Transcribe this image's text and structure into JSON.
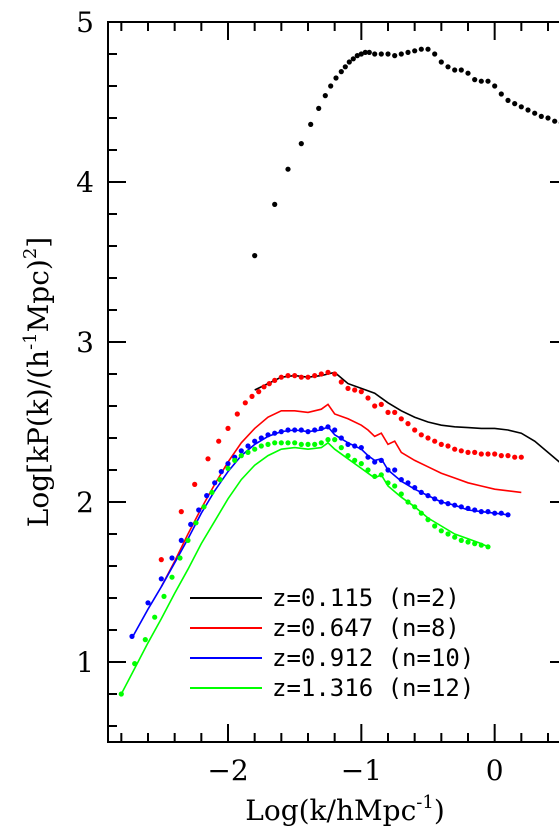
{
  "chart_data": {
    "type": "line",
    "xlabel": "Log(k/hMpc",
    "xlabel_sup": "-1",
    "xlabel_end": ")",
    "ylabel_parts": [
      "Log[kP(k)/(h",
      "-1",
      "Mpc)",
      "2",
      "]"
    ],
    "xlim": [
      -2.9,
      0.55
    ],
    "ylim": [
      0.5,
      5.0
    ],
    "x_ticks": [
      -2,
      -1,
      0
    ],
    "x_tick_labels": [
      "−2",
      "−1",
      "0"
    ],
    "y_ticks": [
      1,
      2,
      3,
      4,
      5
    ],
    "y_tick_labels": [
      "1",
      "2",
      "3",
      "4",
      "5"
    ],
    "legend_position": "bottom-right",
    "series": [
      {
        "name": "z=0.115 (n=2)",
        "color": "#000000",
        "line": {
          "x": [
            -1.8,
            -1.7,
            -1.6,
            -1.5,
            -1.4,
            -1.3,
            -1.2,
            -1.1,
            -1.0,
            -0.9,
            -0.8,
            -0.7,
            -0.6,
            -0.5,
            -0.4,
            -0.3,
            -0.2,
            -0.1,
            0.0,
            0.1,
            0.2,
            0.3,
            0.4,
            0.5,
            0.55
          ],
          "y": [
            2.7,
            2.74,
            2.78,
            2.79,
            2.78,
            2.79,
            2.81,
            2.74,
            2.71,
            2.68,
            2.62,
            2.57,
            2.53,
            2.5,
            2.48,
            2.47,
            2.465,
            2.46,
            2.46,
            2.45,
            2.43,
            2.38,
            2.31,
            2.24,
            2.2
          ]
        },
        "points": {
          "x": [
            -1.8,
            -1.65,
            -1.55,
            -1.45,
            -1.38,
            -1.32,
            -1.27,
            -1.23,
            -1.19,
            -1.15,
            -1.12,
            -1.09,
            -1.06,
            -1.03,
            -1.0,
            -0.97,
            -0.94,
            -0.9,
            -0.85,
            -0.8,
            -0.75,
            -0.7,
            -0.65,
            -0.6,
            -0.55,
            -0.5,
            -0.45,
            -0.4,
            -0.35,
            -0.3,
            -0.25,
            -0.2,
            -0.15,
            -0.1,
            -0.05,
            0.0,
            0.05,
            0.1,
            0.15,
            0.2,
            0.25,
            0.3,
            0.35,
            0.4,
            0.45,
            0.5,
            0.55
          ],
          "y": [
            3.54,
            3.86,
            4.08,
            4.24,
            4.36,
            4.46,
            4.54,
            4.6,
            4.65,
            4.69,
            4.72,
            4.75,
            4.77,
            4.79,
            4.8,
            4.81,
            4.81,
            4.8,
            4.8,
            4.8,
            4.79,
            4.8,
            4.81,
            4.82,
            4.83,
            4.83,
            4.8,
            4.75,
            4.72,
            4.7,
            4.7,
            4.68,
            4.64,
            4.63,
            4.63,
            4.6,
            4.55,
            4.51,
            4.49,
            4.47,
            4.45,
            4.43,
            4.41,
            4.4,
            4.38,
            4.37,
            4.36
          ]
        }
      },
      {
        "name": "z=0.647 (n=8)",
        "color": "#ff0000",
        "line": {
          "x": [
            -2.5,
            -2.4,
            -2.3,
            -2.2,
            -2.1,
            -2.0,
            -1.9,
            -1.8,
            -1.7,
            -1.6,
            -1.5,
            -1.4,
            -1.3,
            -1.25,
            -1.2,
            -1.1,
            -1.0,
            -0.95,
            -0.9,
            -0.85,
            -0.8,
            -0.75,
            -0.7,
            -0.6,
            -0.5,
            -0.4,
            -0.3,
            -0.2,
            -0.1,
            0.0,
            0.1,
            0.2
          ],
          "y": [
            1.47,
            1.63,
            1.8,
            1.96,
            2.11,
            2.25,
            2.37,
            2.46,
            2.53,
            2.57,
            2.57,
            2.56,
            2.58,
            2.61,
            2.55,
            2.52,
            2.48,
            2.45,
            2.41,
            2.43,
            2.36,
            2.38,
            2.31,
            2.26,
            2.22,
            2.18,
            2.15,
            2.12,
            2.1,
            2.08,
            2.07,
            2.06
          ]
        },
        "points": {
          "x": [
            -2.5,
            -2.35,
            -2.25,
            -2.15,
            -2.07,
            -2.0,
            -1.93,
            -1.87,
            -1.82,
            -1.77,
            -1.73,
            -1.69,
            -1.65,
            -1.6,
            -1.55,
            -1.5,
            -1.45,
            -1.4,
            -1.35,
            -1.3,
            -1.25,
            -1.2,
            -1.15,
            -1.1,
            -1.05,
            -1.0,
            -0.95,
            -0.9,
            -0.85,
            -0.8,
            -0.75,
            -0.7,
            -0.65,
            -0.6,
            -0.55,
            -0.5,
            -0.45,
            -0.4,
            -0.35,
            -0.3,
            -0.25,
            -0.2,
            -0.15,
            -0.1,
            -0.05,
            0.0,
            0.05,
            0.1,
            0.15,
            0.2
          ],
          "y": [
            1.64,
            1.94,
            2.11,
            2.27,
            2.38,
            2.46,
            2.55,
            2.62,
            2.66,
            2.69,
            2.72,
            2.74,
            2.76,
            2.78,
            2.79,
            2.79,
            2.78,
            2.78,
            2.79,
            2.8,
            2.81,
            2.8,
            2.75,
            2.71,
            2.7,
            2.69,
            2.65,
            2.6,
            2.61,
            2.56,
            2.56,
            2.52,
            2.49,
            2.45,
            2.42,
            2.4,
            2.38,
            2.36,
            2.35,
            2.33,
            2.32,
            2.31,
            2.31,
            2.3,
            2.3,
            2.3,
            2.29,
            2.29,
            2.28,
            2.28
          ]
        }
      },
      {
        "name": "z=0.912 (n=10)",
        "color": "#0000ff",
        "line": {
          "x": [
            -2.72,
            -2.6,
            -2.5,
            -2.4,
            -2.3,
            -2.2,
            -2.1,
            -2.0,
            -1.9,
            -1.8,
            -1.7,
            -1.6,
            -1.5,
            -1.4,
            -1.3,
            -1.25,
            -1.2,
            -1.1,
            -1.0,
            -0.95,
            -0.9,
            -0.85,
            -0.8,
            -0.7,
            -0.6,
            -0.5,
            -0.4,
            -0.3,
            -0.2,
            -0.1,
            0.0,
            0.1
          ],
          "y": [
            1.15,
            1.33,
            1.47,
            1.62,
            1.77,
            1.93,
            2.07,
            2.19,
            2.29,
            2.36,
            2.41,
            2.44,
            2.45,
            2.44,
            2.45,
            2.47,
            2.42,
            2.37,
            2.33,
            2.29,
            2.26,
            2.27,
            2.2,
            2.13,
            2.08,
            2.04,
            2.0,
            1.98,
            1.95,
            1.94,
            1.93,
            1.92
          ]
        },
        "points": {
          "x": [
            -2.72,
            -2.6,
            -2.5,
            -2.42,
            -2.35,
            -2.28,
            -2.22,
            -2.16,
            -2.1,
            -2.05,
            -2.0,
            -1.95,
            -1.9,
            -1.85,
            -1.8,
            -1.75,
            -1.7,
            -1.65,
            -1.6,
            -1.55,
            -1.5,
            -1.45,
            -1.4,
            -1.35,
            -1.3,
            -1.25,
            -1.2,
            -1.15,
            -1.1,
            -1.05,
            -1.0,
            -0.95,
            -0.9,
            -0.85,
            -0.8,
            -0.75,
            -0.7,
            -0.65,
            -0.6,
            -0.55,
            -0.5,
            -0.45,
            -0.4,
            -0.35,
            -0.3,
            -0.25,
            -0.2,
            -0.15,
            -0.1,
            -0.05,
            0.0,
            0.05,
            0.1
          ],
          "y": [
            1.16,
            1.37,
            1.52,
            1.65,
            1.76,
            1.86,
            1.95,
            2.04,
            2.12,
            2.19,
            2.24,
            2.28,
            2.32,
            2.35,
            2.38,
            2.4,
            2.42,
            2.43,
            2.44,
            2.45,
            2.45,
            2.45,
            2.44,
            2.45,
            2.46,
            2.47,
            2.45,
            2.4,
            2.36,
            2.35,
            2.34,
            2.28,
            2.25,
            2.26,
            2.2,
            2.2,
            2.14,
            2.12,
            2.09,
            2.06,
            2.04,
            2.02,
            2.0,
            1.99,
            1.98,
            1.97,
            1.96,
            1.95,
            1.94,
            1.94,
            1.93,
            1.93,
            1.92
          ]
        }
      },
      {
        "name": "z=1.316 (n=12)",
        "color": "#00ff00",
        "line": {
          "x": [
            -2.8,
            -2.7,
            -2.6,
            -2.5,
            -2.4,
            -2.3,
            -2.2,
            -2.1,
            -2.0,
            -1.9,
            -1.8,
            -1.7,
            -1.6,
            -1.5,
            -1.4,
            -1.3,
            -1.25,
            -1.2,
            -1.1,
            -1.0,
            -0.95,
            -0.9,
            -0.85,
            -0.8,
            -0.7,
            -0.6,
            -0.5,
            -0.4,
            -0.3,
            -0.2,
            -0.1,
            -0.05
          ],
          "y": [
            0.8,
            0.96,
            1.12,
            1.27,
            1.43,
            1.58,
            1.74,
            1.88,
            2.02,
            2.14,
            2.23,
            2.29,
            2.33,
            2.34,
            2.33,
            2.34,
            2.37,
            2.33,
            2.27,
            2.21,
            2.18,
            2.15,
            2.17,
            2.1,
            2.03,
            1.97,
            1.9,
            1.85,
            1.8,
            1.77,
            1.74,
            1.72
          ]
        },
        "points": {
          "x": [
            -2.8,
            -2.7,
            -2.62,
            -2.55,
            -2.48,
            -2.42,
            -2.36,
            -2.3,
            -2.24,
            -2.18,
            -2.12,
            -2.06,
            -2.0,
            -1.95,
            -1.9,
            -1.85,
            -1.8,
            -1.75,
            -1.7,
            -1.65,
            -1.6,
            -1.55,
            -1.5,
            -1.45,
            -1.4,
            -1.35,
            -1.3,
            -1.25,
            -1.2,
            -1.15,
            -1.1,
            -1.05,
            -1.0,
            -0.95,
            -0.9,
            -0.85,
            -0.8,
            -0.75,
            -0.7,
            -0.65,
            -0.6,
            -0.55,
            -0.5,
            -0.45,
            -0.4,
            -0.35,
            -0.3,
            -0.25,
            -0.2,
            -0.15,
            -0.1,
            -0.05
          ],
          "y": [
            0.8,
            0.99,
            1.14,
            1.28,
            1.41,
            1.53,
            1.65,
            1.76,
            1.87,
            1.97,
            2.06,
            2.14,
            2.21,
            2.26,
            2.29,
            2.31,
            2.33,
            2.35,
            2.36,
            2.37,
            2.37,
            2.37,
            2.37,
            2.36,
            2.36,
            2.36,
            2.37,
            2.39,
            2.39,
            2.34,
            2.29,
            2.26,
            2.24,
            2.2,
            2.16,
            2.17,
            2.12,
            2.1,
            2.05,
            2.0,
            1.97,
            1.93,
            1.89,
            1.85,
            1.82,
            1.8,
            1.78,
            1.76,
            1.75,
            1.74,
            1.73,
            1.72
          ]
        }
      }
    ]
  }
}
